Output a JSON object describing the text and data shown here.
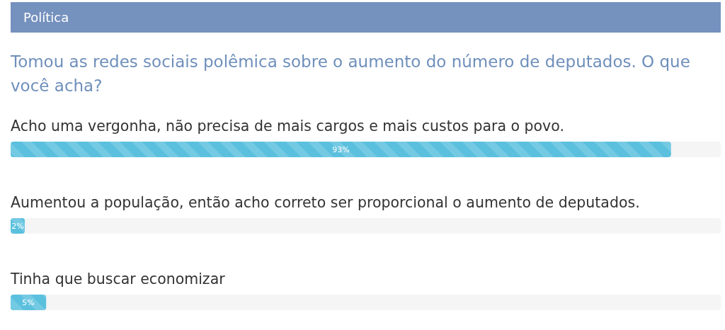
{
  "chart_data": {
    "type": "bar",
    "orientation": "horizontal",
    "title": "Política",
    "subtitle": "Tomou as redes sociais polêmica sobre o aumento do número de deputados. O que você acha?",
    "categories": [
      "Acho uma vergonha, não precisa de mais cargos e mais custos para o povo.",
      "Aumentou a população, então acho correto ser proporcional o aumento de deputados.",
      "Tinha que buscar economizar"
    ],
    "values": [
      93,
      2,
      5
    ],
    "value_labels": [
      "93%",
      "2%",
      "5%"
    ],
    "color": "#5bc0de",
    "xlim": [
      0,
      100
    ],
    "tick_labels": "y"
  }
}
